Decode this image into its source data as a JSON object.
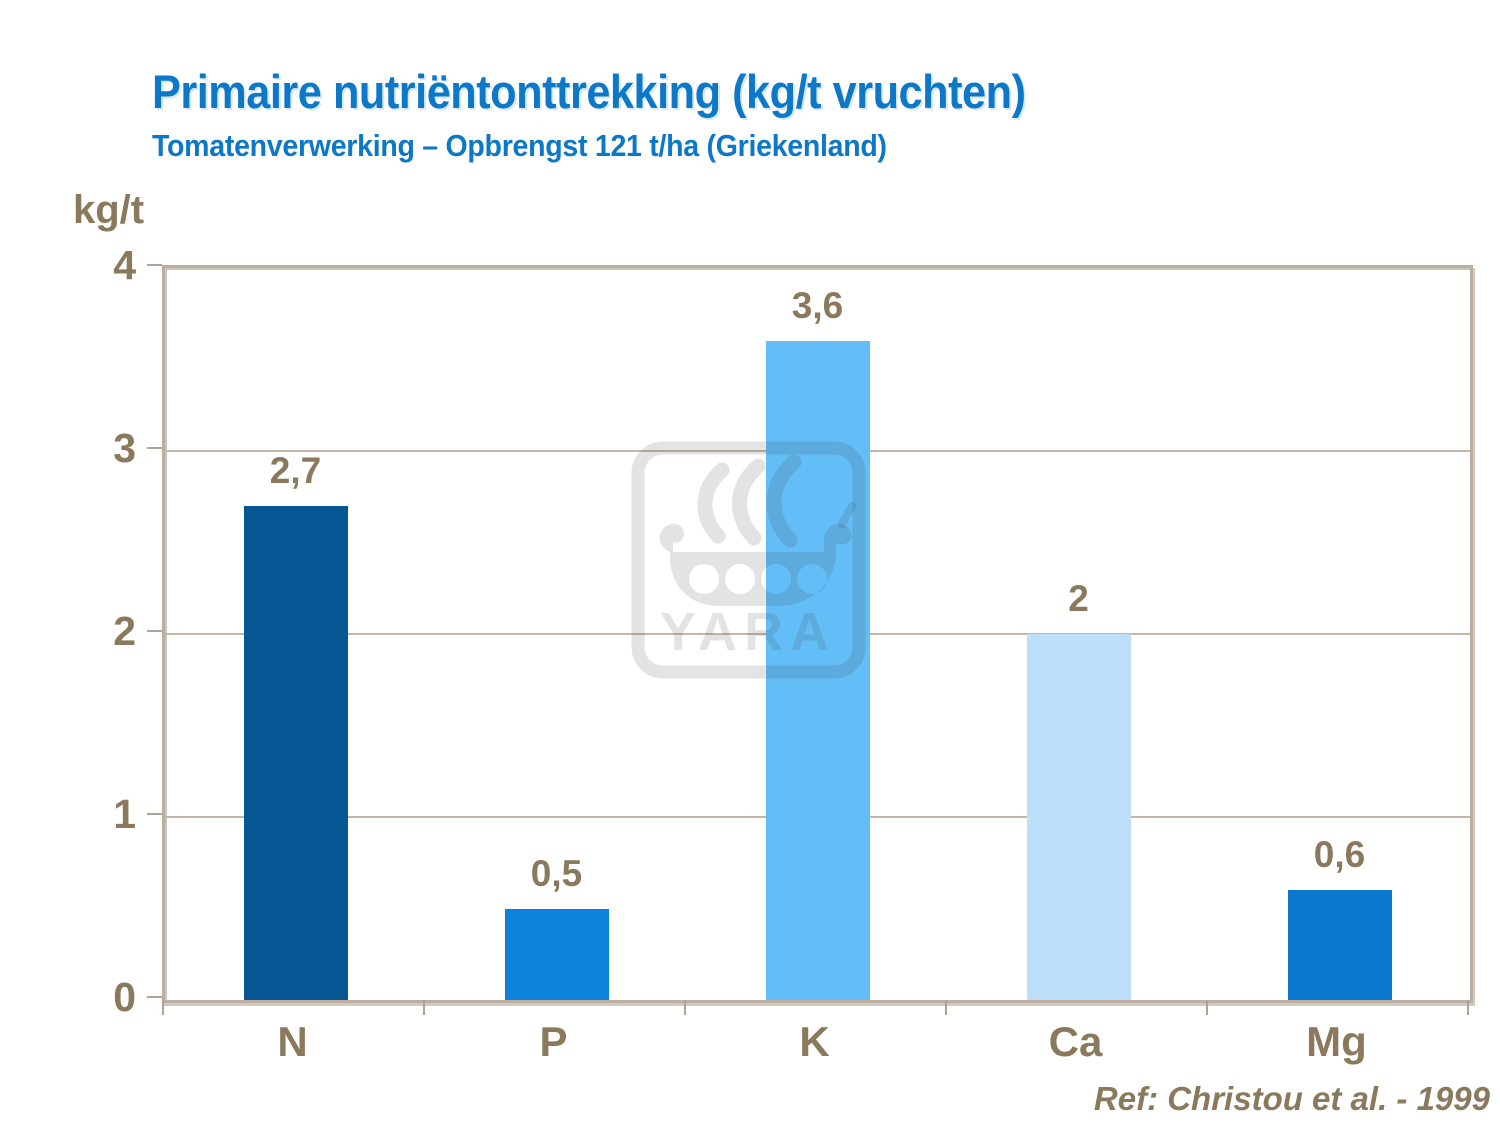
{
  "title": "Primaire nutriëntonttrekking (kg/t vruchten)",
  "subtitle": "Tomatenverwerking – Opbrengst 121 t/ha (Griekenland)",
  "y_axis_unit": "kg/t",
  "reference": "Ref: Christou et al. - 1999",
  "watermark_text": "YARA",
  "colors": {
    "title_blue": "#0d77c8",
    "axis_text_brown": "#8a795c",
    "frame_tan": "#bcafa1",
    "gridline_tan": "#c4b7a7",
    "watermark_gray": "rgba(60,60,60,0.14)"
  },
  "chart_data": {
    "type": "bar",
    "title": "Primaire nutriëntonttrekking (kg/t vruchten)",
    "subtitle": "Tomatenverwerking – Opbrengst 121 t/ha (Griekenland)",
    "categories": [
      "N",
      "P",
      "K",
      "Ca",
      "Mg"
    ],
    "values": [
      2.7,
      0.5,
      3.6,
      2,
      0.6
    ],
    "value_labels": [
      "2,7",
      "0,5",
      "3,6",
      "2",
      "0,6"
    ],
    "bar_colors": [
      "#055693",
      "#0b83dc",
      "#63bdf7",
      "#bedffa",
      "#0b77ce"
    ],
    "xlabel": "",
    "ylabel": "kg/t",
    "ylim": [
      0,
      4
    ],
    "yticks": [
      0,
      1,
      2,
      3,
      4
    ],
    "grid": true,
    "legend": false,
    "annotation": "Ref: Christou et al. - 1999"
  }
}
